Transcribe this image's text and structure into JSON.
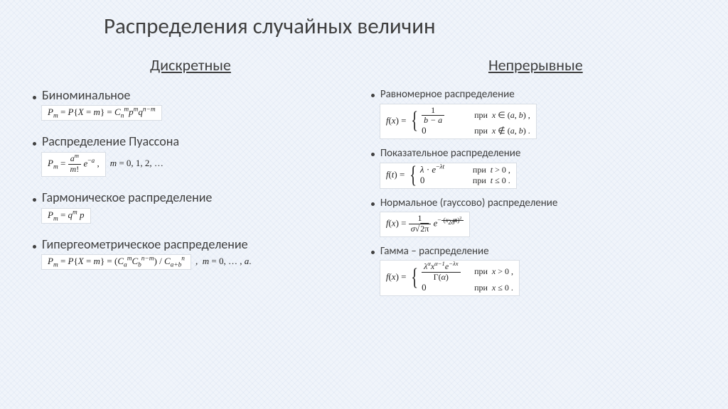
{
  "colors": {
    "background": "#f0f4fa",
    "text": "#404040",
    "formula_bg": "#ffffff",
    "formula_border": "#d8dde4"
  },
  "title": "Распределения случайных величин",
  "discrete": {
    "heading": "Дискретные",
    "items": [
      {
        "label": "Биноминальное",
        "formula": "P_m = P{X = m} = C_n^m p^m q^{n-m}"
      },
      {
        "label": "Распределение Пуассона",
        "formula": "P_m = a^m / m! · e^{-a},  m = 0, 1, 2, …"
      },
      {
        "label": "Гармоническое распределение",
        "formula": "P_m = q^m p"
      },
      {
        "label": "Гипергеометрическое распределение",
        "formula": "P_m = P{X = m} = (C_a^m C_b^{n-m}) / C_{a+b}^n ,  m = 0, … , a."
      }
    ]
  },
  "continuous": {
    "heading": "Непрерывные",
    "items": [
      {
        "label": "Равномерное распределение",
        "formula": "f(x) = { 1/(b−a) при x ∈ (a,b); 0 при x ∉ (a,b) }"
      },
      {
        "label": "Показательное распределение",
        "formula": "f(t) = { λ·e^{−λt} при t > 0; 0 при t ≤ 0 }"
      },
      {
        "label": "Нормальное (гауссово) распределение",
        "formula": "f(x) = 1/(σ√(2π)) · e^{ −(x−m)^2 / 2σ^2 }"
      },
      {
        "label": "Гамма – распределение",
        "formula": "f(x) = { λ^α x^{α−1} e^{−λx} / Γ(α) при x > 0; 0 при x ≤ 0 }"
      }
    ]
  },
  "typography": {
    "title_fontsize": 31,
    "heading_fontsize": 22,
    "label_fontsize_discrete": 18,
    "label_fontsize_continuous": 15,
    "formula_fontsize": 13
  }
}
